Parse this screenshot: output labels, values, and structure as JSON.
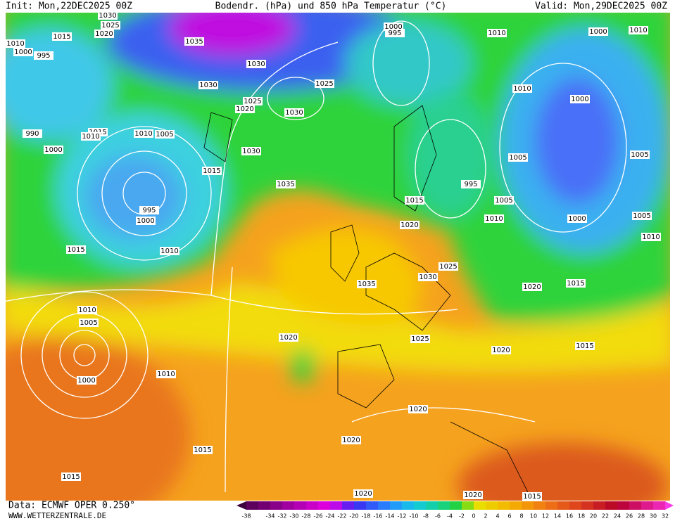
{
  "header": {
    "init": "Init: Mon,22DEC2025 00Z",
    "title": "Bodendr. (hPa) und 850 hPa Temperatur (°C)",
    "valid": "Valid: Mon,29DEC2025 00Z"
  },
  "footer": {
    "data": "Data: ECMWF OPER 0.250°",
    "site": "WWW.WETTERZENTRALE.DE"
  },
  "colorbar": {
    "ticks": [
      -38,
      -34,
      -32,
      -30,
      -28,
      -26,
      -24,
      -22,
      -20,
      -18,
      -16,
      -14,
      -12,
      -10,
      -8,
      -6,
      -4,
      -2,
      0,
      2,
      4,
      6,
      8,
      10,
      12,
      14,
      16,
      18,
      20,
      22,
      24,
      26,
      28,
      30,
      32
    ]
  },
  "isobar_labels": [
    1030,
    1025,
    1020,
    1015,
    1010,
    1000,
    995,
    1035,
    1030,
    1030,
    1025,
    1025,
    1020,
    1030,
    1015,
    1010,
    1005,
    1010,
    990,
    1000,
    1030,
    1015,
    1035,
    995,
    1000,
    1015,
    1010,
    1000,
    995,
    1010,
    1000,
    1010,
    1010,
    1000,
    1005,
    1005,
    995,
    1005,
    1015,
    1010,
    1000,
    1005,
    1010,
    1020,
    1025,
    1030,
    1035,
    1020,
    1015,
    1010,
    1005,
    1010,
    1000,
    1020,
    1025,
    1020,
    1015,
    1020,
    1020,
    1015,
    1015,
    1020,
    1020,
    1015
  ]
}
